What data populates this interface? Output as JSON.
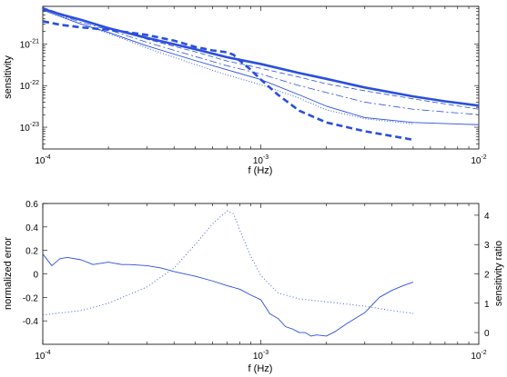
{
  "chart_data": [
    {
      "type": "line",
      "xlabel": "f (Hz)",
      "ylabel": "sensitivity",
      "xscale": "log",
      "yscale": "log",
      "xlim": [
        0.0001,
        0.01
      ],
      "ylim": [
        3e-24,
        8e-21
      ],
      "x_ticks": [
        {
          "base": "10",
          "exp": "-4"
        },
        {
          "base": "10",
          "exp": "-3"
        },
        {
          "base": "10",
          "exp": "-2"
        }
      ],
      "y_ticks": [
        {
          "base": "10",
          "exp": "-21"
        },
        {
          "base": "10",
          "exp": "-22"
        },
        {
          "base": "10",
          "exp": "-23"
        }
      ],
      "grid": false,
      "color": "#2a4fdc",
      "series": [
        {
          "style": "thick-solid",
          "x": [
            0.0001,
            0.00012,
            0.00015,
            0.0002,
            0.0003,
            0.0005,
            0.0007,
            0.001,
            0.0015,
            0.002,
            0.003,
            0.005,
            0.007,
            0.01
          ],
          "y": [
            7e-21,
            5.2e-21,
            3.8e-21,
            2.4e-21,
            1.4e-21,
            7.5e-22,
            4.8e-22,
            3.3e-22,
            2e-22,
            1.45e-22,
            9e-23,
            5.5e-23,
            4.2e-23,
            3.3e-23
          ]
        },
        {
          "style": "thick-dashed",
          "x": [
            0.0001,
            0.00012,
            0.00015,
            0.0002,
            0.0003,
            0.0004,
            0.0005,
            0.0006,
            0.0007,
            0.00075,
            0.0008,
            0.0009,
            0.001,
            0.0012,
            0.0015,
            0.002,
            0.003,
            0.005
          ],
          "y": [
            3.5e-21,
            2.9e-21,
            2.5e-21,
            2.2e-21,
            1.65e-21,
            1.2e-21,
            8.5e-22,
            7e-22,
            6.3e-22,
            5.5e-22,
            4e-22,
            2.4e-22,
            1.4e-22,
            6e-23,
            2.5e-23,
            1.3e-23,
            8e-24,
            5e-24
          ]
        },
        {
          "style": "thin-dashed",
          "x": [
            0.0001,
            0.00015,
            0.0002,
            0.0003,
            0.0005,
            0.0007,
            0.001,
            0.0015,
            0.002,
            0.003,
            0.005,
            0.01
          ],
          "y": [
            7.5e-21,
            3.7e-21,
            2.5e-21,
            1.3e-21,
            6.5e-22,
            3.9e-22,
            2.6e-22,
            1.6e-22,
            1.1e-22,
            7.5e-23,
            4.8e-23,
            2.7e-23
          ]
        },
        {
          "style": "thin-dashdot",
          "x": [
            0.0001,
            0.00015,
            0.0002,
            0.0003,
            0.0005,
            0.0007,
            0.001,
            0.0015,
            0.002,
            0.003,
            0.005,
            0.01
          ],
          "y": [
            7e-21,
            3.3e-21,
            2.2e-21,
            1.1e-21,
            5e-22,
            3e-22,
            1.9e-22,
            1e-22,
            6.8e-23,
            4e-23,
            2.7e-23,
            2e-23
          ]
        },
        {
          "style": "thin-solid",
          "x": [
            0.0001,
            0.00015,
            0.0002,
            0.0003,
            0.0005,
            0.0007,
            0.001,
            0.0015,
            0.002,
            0.003,
            0.005,
            0.01
          ],
          "y": [
            6.5e-21,
            3e-21,
            1.9e-21,
            9e-22,
            4e-22,
            2.4e-22,
            1.4e-22,
            6e-23,
            3.2e-23,
            1.7e-23,
            1.3e-23,
            1.15e-23
          ]
        },
        {
          "style": "thin-dotted",
          "x": [
            0.0001,
            0.00015,
            0.0002,
            0.0003,
            0.0005,
            0.0007,
            0.001,
            0.0015,
            0.002,
            0.003,
            0.005
          ],
          "y": [
            7e-21,
            3e-21,
            1.8e-21,
            8e-22,
            3.2e-22,
            1.8e-22,
            1.05e-22,
            5e-23,
            2.6e-23,
            1.6e-23,
            1.2e-23
          ]
        }
      ]
    },
    {
      "type": "line",
      "xlabel": "f (Hz)",
      "ylabel": "normalized error",
      "ylabel_right": "sensitivity ratio",
      "xscale": "log",
      "xlim": [
        0.0001,
        0.01
      ],
      "ylim": [
        -0.6,
        0.6
      ],
      "ylim_right": [
        -0.4,
        4.4
      ],
      "x_ticks": [
        {
          "base": "10",
          "exp": "-4"
        },
        {
          "base": "10",
          "exp": "-3"
        },
        {
          "base": "10",
          "exp": "-2"
        }
      ],
      "y_ticks": [
        "0.6",
        "0.4",
        "0.2",
        "0",
        "-0.2",
        "-0.4"
      ],
      "y_ticks_values": [
        0.6,
        0.4,
        0.2,
        0,
        -0.2,
        -0.4
      ],
      "y_ticks_right": [
        "4",
        "3",
        "2",
        "1",
        "0"
      ],
      "y_ticks_right_values": [
        4,
        3,
        2,
        1,
        0
      ],
      "grid": false,
      "color": "#2a4fdc",
      "series": [
        {
          "style": "solid",
          "axis": "left",
          "x": [
            0.0001,
            0.00011,
            0.00012,
            0.00013,
            0.00015,
            0.00017,
            0.0002,
            0.00023,
            0.00025,
            0.0003,
            0.00035,
            0.0004,
            0.0005,
            0.0006,
            0.0007,
            0.0008,
            0.0009,
            0.001,
            0.0011,
            0.0012,
            0.0013,
            0.0014,
            0.0015,
            0.0016,
            0.0017,
            0.0018,
            0.002,
            0.0022,
            0.0025,
            0.003,
            0.0035,
            0.004,
            0.0045,
            0.005
          ],
          "y": [
            0.17,
            0.07,
            0.13,
            0.14,
            0.12,
            0.08,
            0.1,
            0.08,
            0.08,
            0.07,
            0.05,
            0.02,
            -0.02,
            -0.06,
            -0.1,
            -0.13,
            -0.18,
            -0.22,
            -0.34,
            -0.38,
            -0.45,
            -0.47,
            -0.5,
            -0.5,
            -0.53,
            -0.52,
            -0.53,
            -0.49,
            -0.42,
            -0.33,
            -0.2,
            -0.14,
            -0.1,
            -0.07
          ]
        },
        {
          "style": "dotted",
          "axis": "right",
          "x": [
            0.0001,
            0.00015,
            0.0002,
            0.0003,
            0.0004,
            0.0005,
            0.0006,
            0.0007,
            0.00075,
            0.0008,
            0.0009,
            0.001,
            0.0012,
            0.0015,
            0.002,
            0.003,
            0.004,
            0.005
          ],
          "y": [
            0.6,
            0.75,
            1.0,
            1.55,
            2.2,
            3.0,
            3.7,
            4.15,
            4.05,
            3.5,
            2.6,
            1.95,
            1.35,
            1.15,
            1.05,
            0.9,
            0.75,
            0.65
          ]
        }
      ]
    }
  ]
}
